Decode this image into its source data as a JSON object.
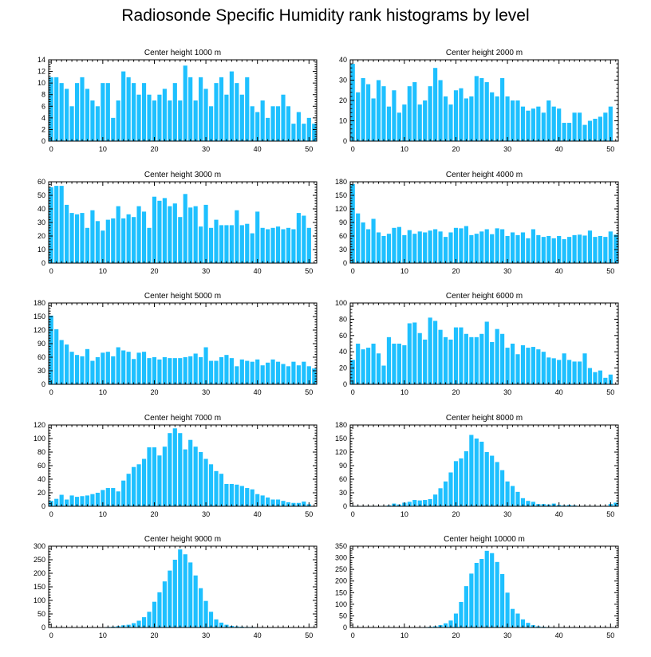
{
  "figure": {
    "title": "Radiosonde Specific Humidity rank histograms by level"
  },
  "colors": {
    "bar": "#1ec0ff",
    "axis": "#000000"
  },
  "chart_data": [
    {
      "type": "bar",
      "title": "Center height 1000 m",
      "xlabel": "",
      "ylabel": "",
      "xlim": [
        -0.5,
        51.5
      ],
      "xticks": [
        0,
        10,
        20,
        30,
        40,
        50
      ],
      "ylim": [
        0,
        14
      ],
      "yticks": [
        0,
        2,
        4,
        6,
        8,
        10,
        12,
        14
      ],
      "values": [
        11,
        11,
        10,
        9,
        6,
        10,
        11,
        9,
        7,
        6,
        10,
        10,
        4,
        7,
        12,
        11,
        10,
        8,
        10,
        8,
        7,
        8,
        9,
        7,
        10,
        7,
        13,
        11,
        7,
        11,
        9,
        6,
        10,
        11,
        8,
        12,
        10,
        8,
        11,
        6,
        5,
        7,
        4,
        6,
        6,
        8,
        6,
        3,
        5,
        3,
        4,
        3
      ]
    },
    {
      "type": "bar",
      "title": "Center height 2000 m",
      "xlabel": "",
      "ylabel": "",
      "xlim": [
        -0.5,
        51.5
      ],
      "xticks": [
        0,
        10,
        20,
        30,
        40,
        50
      ],
      "ylim": [
        0,
        40
      ],
      "yticks": [
        0,
        10,
        20,
        30,
        40
      ],
      "values": [
        38,
        24,
        31,
        28,
        21,
        30,
        27,
        17,
        25,
        14,
        18,
        27,
        29,
        18,
        20,
        27,
        36,
        30,
        22,
        18,
        25,
        26,
        21,
        22,
        32,
        31,
        29,
        24,
        22,
        31,
        22,
        20,
        20,
        17,
        15,
        16,
        17,
        14,
        20,
        17,
        16,
        9,
        9,
        14,
        14,
        8,
        10,
        11,
        12,
        14,
        17,
        0
      ]
    },
    {
      "type": "bar",
      "title": "Center height 3000 m",
      "xlabel": "",
      "ylabel": "",
      "xlim": [
        -0.5,
        51.5
      ],
      "xticks": [
        0,
        10,
        20,
        30,
        40,
        50
      ],
      "ylim": [
        0,
        60
      ],
      "yticks": [
        0,
        10,
        20,
        30,
        40,
        50,
        60
      ],
      "values": [
        56,
        57,
        57,
        43,
        37,
        36,
        37,
        26,
        39,
        31,
        24,
        32,
        33,
        42,
        33,
        36,
        34,
        42,
        38,
        26,
        49,
        46,
        48,
        42,
        44,
        34,
        51,
        41,
        42,
        27,
        43,
        26,
        32,
        28,
        28,
        28,
        39,
        28,
        29,
        22,
        38,
        26,
        25,
        26,
        27,
        25,
        26,
        25,
        37,
        35,
        26,
        0
      ]
    },
    {
      "type": "bar",
      "title": "Center height 4000 m",
      "xlabel": "",
      "ylabel": "",
      "xlim": [
        -0.5,
        51.5
      ],
      "xticks": [
        0,
        10,
        20,
        30,
        40,
        50
      ],
      "ylim": [
        0,
        180
      ],
      "yticks": [
        0,
        30,
        60,
        90,
        120,
        150,
        180
      ],
      "values": [
        175,
        110,
        90,
        75,
        98,
        68,
        60,
        65,
        78,
        80,
        62,
        73,
        65,
        70,
        68,
        72,
        75,
        70,
        58,
        68,
        78,
        77,
        82,
        62,
        65,
        70,
        75,
        64,
        77,
        75,
        60,
        68,
        62,
        68,
        55,
        75,
        62,
        58,
        60,
        55,
        60,
        53,
        58,
        62,
        63,
        61,
        72,
        58,
        60,
        58,
        70,
        63
      ]
    },
    {
      "type": "bar",
      "title": "Center height 5000 m",
      "xlabel": "",
      "ylabel": "",
      "xlim": [
        -0.5,
        51.5
      ],
      "xticks": [
        0,
        10,
        20,
        30,
        40,
        50
      ],
      "ylim": [
        0,
        180
      ],
      "yticks": [
        0,
        30,
        60,
        90,
        120,
        150,
        180
      ],
      "values": [
        152,
        122,
        98,
        88,
        72,
        65,
        62,
        78,
        52,
        60,
        70,
        72,
        62,
        82,
        75,
        72,
        56,
        70,
        72,
        58,
        60,
        55,
        60,
        58,
        58,
        58,
        60,
        62,
        68,
        60,
        82,
        52,
        52,
        60,
        65,
        58,
        40,
        55,
        52,
        50,
        55,
        42,
        48,
        55,
        50,
        45,
        40,
        50,
        42,
        50,
        40,
        35
      ]
    },
    {
      "type": "bar",
      "title": "Center height 6000 m",
      "xlabel": "",
      "ylabel": "",
      "xlim": [
        -0.5,
        51.5
      ],
      "xticks": [
        0,
        10,
        20,
        30,
        40,
        50
      ],
      "ylim": [
        0,
        100
      ],
      "yticks": [
        0,
        20,
        40,
        60,
        80,
        100
      ],
      "values": [
        30,
        50,
        43,
        45,
        50,
        38,
        23,
        58,
        50,
        50,
        48,
        75,
        76,
        63,
        55,
        82,
        78,
        67,
        58,
        55,
        70,
        70,
        62,
        58,
        58,
        62,
        77,
        52,
        68,
        62,
        45,
        50,
        37,
        48,
        45,
        46,
        43,
        40,
        33,
        32,
        30,
        38,
        30,
        28,
        28,
        38,
        20,
        15,
        17,
        8,
        12,
        0
      ]
    },
    {
      "type": "bar",
      "title": "Center height 7000 m",
      "xlabel": "",
      "ylabel": "",
      "xlim": [
        -0.5,
        51.5
      ],
      "xticks": [
        0,
        10,
        20,
        30,
        40,
        50
      ],
      "ylim": [
        0,
        120
      ],
      "yticks": [
        0,
        20,
        40,
        60,
        80,
        100,
        120
      ],
      "values": [
        8,
        11,
        17,
        10,
        16,
        14,
        15,
        16,
        18,
        20,
        24,
        27,
        27,
        22,
        38,
        48,
        58,
        62,
        70,
        87,
        87,
        75,
        88,
        108,
        115,
        108,
        84,
        98,
        88,
        80,
        70,
        62,
        52,
        48,
        33,
        33,
        32,
        30,
        27,
        25,
        18,
        16,
        13,
        10,
        10,
        8,
        6,
        5,
        5,
        7,
        3,
        0
      ]
    },
    {
      "type": "bar",
      "title": "Center height 8000 m",
      "xlabel": "",
      "ylabel": "",
      "xlim": [
        -0.5,
        51.5
      ],
      "xticks": [
        0,
        10,
        20,
        30,
        40,
        50
      ],
      "ylim": [
        0,
        180
      ],
      "yticks": [
        0,
        30,
        60,
        90,
        120,
        150,
        180
      ],
      "values": [
        1,
        1,
        1,
        1,
        1,
        1,
        1,
        2,
        6,
        4,
        8,
        10,
        14,
        13,
        14,
        16,
        26,
        40,
        55,
        75,
        100,
        106,
        122,
        158,
        150,
        143,
        120,
        112,
        98,
        80,
        55,
        45,
        32,
        18,
        12,
        10,
        5,
        5,
        4,
        6,
        3,
        2,
        3,
        2,
        1,
        1,
        1,
        1,
        1,
        1,
        5,
        8
      ]
    },
    {
      "type": "bar",
      "title": "Center height 9000 m",
      "xlabel": "",
      "ylabel": "",
      "xlim": [
        -0.5,
        51.5
      ],
      "xticks": [
        0,
        10,
        20,
        30,
        40,
        50
      ],
      "ylim": [
        0,
        300
      ],
      "yticks": [
        0,
        50,
        100,
        150,
        200,
        250,
        300
      ],
      "values": [
        0,
        0,
        0,
        0,
        0,
        0,
        0,
        1,
        1,
        1,
        1,
        2,
        3,
        5,
        8,
        10,
        16,
        25,
        38,
        58,
        95,
        130,
        170,
        210,
        250,
        288,
        270,
        240,
        192,
        145,
        98,
        58,
        30,
        18,
        10,
        6,
        4,
        3,
        2,
        2,
        1,
        1,
        1,
        1,
        1,
        1,
        1,
        1,
        1,
        1,
        1,
        1
      ]
    },
    {
      "type": "bar",
      "title": "Center height 10000 m",
      "xlabel": "",
      "ylabel": "",
      "xlim": [
        -0.5,
        51.5
      ],
      "xticks": [
        0,
        10,
        20,
        30,
        40,
        50
      ],
      "ylim": [
        0,
        350
      ],
      "yticks": [
        0,
        50,
        100,
        150,
        200,
        250,
        300,
        350
      ],
      "values": [
        0,
        0,
        0,
        0,
        0,
        0,
        0,
        0,
        0,
        0,
        0,
        0,
        0,
        1,
        2,
        3,
        5,
        10,
        18,
        30,
        60,
        110,
        178,
        232,
        278,
        295,
        330,
        320,
        282,
        230,
        150,
        80,
        60,
        35,
        20,
        10,
        5,
        3,
        2,
        1,
        1,
        1,
        1,
        1,
        1,
        1,
        1,
        1,
        1,
        1,
        1,
        1
      ]
    }
  ]
}
